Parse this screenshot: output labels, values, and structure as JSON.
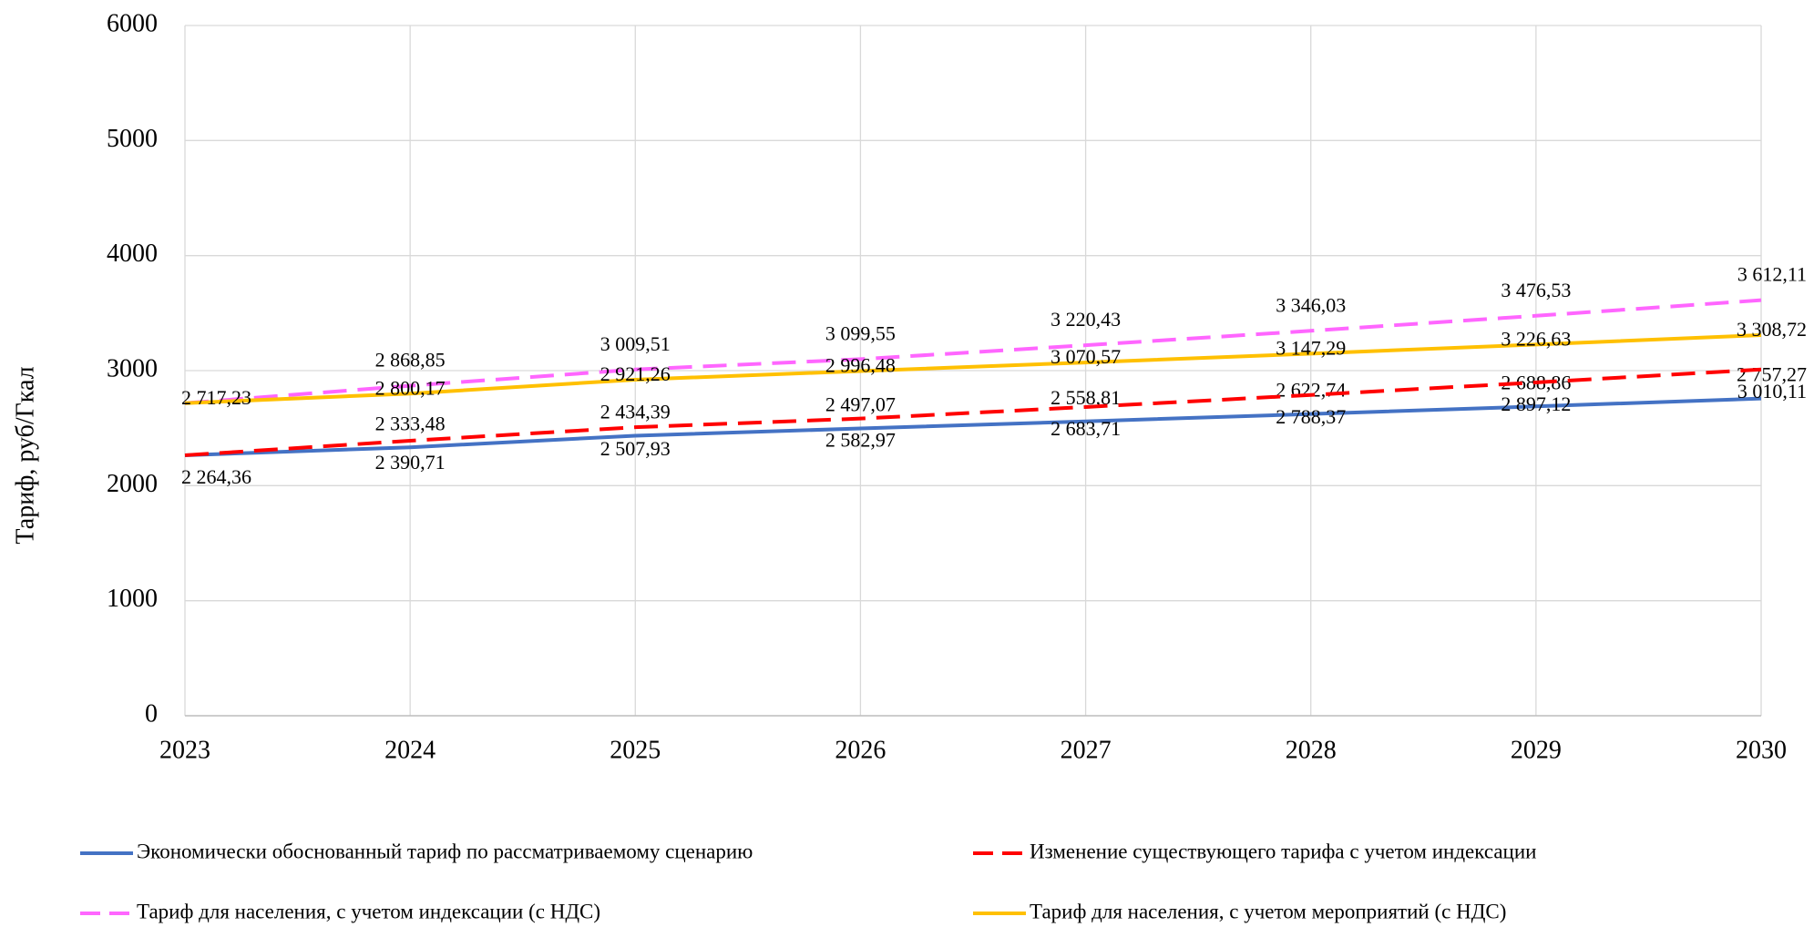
{
  "chart_data": {
    "type": "line",
    "y_label": "Тариф, руб/Гкал",
    "categories": [
      "2023",
      "2024",
      "2025",
      "2026",
      "2027",
      "2028",
      "2029",
      "2030"
    ],
    "ylim": [
      0,
      6000
    ],
    "yticks": [
      0,
      1000,
      2000,
      3000,
      4000,
      5000,
      6000
    ],
    "grid": true,
    "series": [
      {
        "name": "Экономически обоснованный тариф по рассматриваемому сценарию",
        "color": "#4472c4",
        "dash": false,
        "values": [
          2264,
          2333.48,
          2434.39,
          2497.07,
          2558.81,
          2622.74,
          2688.86,
          2757.27
        ],
        "value_labels": [
          null,
          "2 333,48",
          "2 434,39",
          "2 497,07",
          "2 558,81",
          "2 622,74",
          "2 688,86",
          "2 757,27"
        ]
      },
      {
        "name": "Изменение существующего тарифа с учетом индексации",
        "color": "#ff0000",
        "dash": true,
        "values": [
          2264.36,
          2390.71,
          2507.93,
          2582.97,
          2683.71,
          2788.37,
          2897.12,
          3010.11
        ],
        "value_labels": [
          "2 264,36",
          "2 390,71",
          "2 507,93",
          "2 582,97",
          "2 683,71",
          "2 788,37",
          "2 897,12",
          "3 010,11"
        ]
      },
      {
        "name": "Тариф для населения, с учетом индексации (с НДС)",
        "color": "#ff66ff",
        "dash": true,
        "values": [
          2717,
          2868.85,
          3009.51,
          3099.55,
          3220.43,
          3346.03,
          3476.53,
          3612.11
        ],
        "value_labels": [
          null,
          "2 868,85",
          "3 009,51",
          "3 099,55",
          "3 220,43",
          "3 346,03",
          "3 476,53",
          "3 612,11"
        ]
      },
      {
        "name": "Тариф для населения, с учетом мероприятий (с НДС)",
        "color": "#ffc000",
        "dash": false,
        "values": [
          2717.23,
          2800.17,
          2921.26,
          2996.48,
          3070.57,
          3147.29,
          3226.63,
          3308.72
        ],
        "value_labels": [
          "2 717,23",
          "2 800,17",
          "2 921,26",
          "2 996,48",
          "3 070,57",
          "3 147,29",
          "3 226,63",
          "3 308,72"
        ]
      }
    ]
  }
}
